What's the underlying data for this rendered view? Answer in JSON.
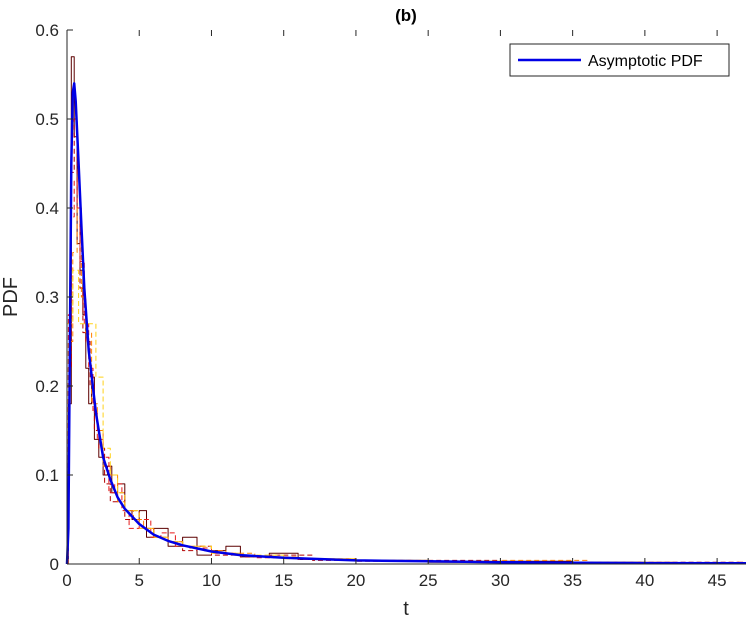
{
  "chart_data": {
    "type": "line",
    "title": "(b)",
    "xlabel": "t",
    "ylabel": "PDF",
    "xlim": [
      0,
      47
    ],
    "ylim": [
      0,
      0.6
    ],
    "xticks": [
      0,
      5,
      10,
      15,
      20,
      25,
      30,
      35,
      40,
      45
    ],
    "yticks": [
      0,
      0.1,
      0.2,
      0.3,
      0.4,
      0.5,
      0.6
    ],
    "ytick_labels": [
      "0",
      "0.1",
      "0.2",
      "0.3",
      "0.4",
      "0.5",
      "0.6"
    ],
    "grid": false,
    "legend": {
      "position": "top-right",
      "entries": [
        "Asymptotic PDF"
      ]
    },
    "series": [
      {
        "name": "Asymptotic PDF",
        "color": "#0000e6",
        "style": "solid",
        "x": [
          0,
          0.1,
          0.2,
          0.3,
          0.4,
          0.5,
          0.6,
          0.8,
          1.0,
          1.2,
          1.5,
          2.0,
          2.5,
          3.0,
          3.5,
          4.0,
          5.0,
          6.0,
          7.0,
          8.0,
          10.0,
          12.0,
          15.0,
          20.0,
          25.0,
          30.0,
          35.0,
          40.0,
          47.0
        ],
        "y": [
          0,
          0.04,
          0.25,
          0.45,
          0.53,
          0.54,
          0.52,
          0.45,
          0.38,
          0.31,
          0.24,
          0.17,
          0.12,
          0.095,
          0.075,
          0.062,
          0.045,
          0.033,
          0.026,
          0.021,
          0.014,
          0.01,
          0.007,
          0.004,
          0.003,
          0.002,
          0.0015,
          0.001,
          0.0008
        ]
      },
      {
        "color": "#5c0000",
        "style": "solid",
        "x": [
          0.1,
          0.3,
          0.5,
          0.7,
          0.9,
          1.1,
          1.3,
          1.5,
          1.7,
          1.9,
          2.2,
          2.5,
          2.8,
          3.1,
          3.5,
          4.0,
          4.5,
          5.0,
          5.5,
          6.0,
          7.0,
          8.0,
          9.0,
          10.0,
          11.0,
          12.0,
          14.0,
          16.0,
          20.0,
          25.0,
          30.0,
          35.0,
          40.0,
          46.5
        ],
        "y": [
          0.18,
          0.57,
          0.48,
          0.36,
          0.33,
          0.28,
          0.22,
          0.18,
          0.21,
          0.14,
          0.12,
          0.1,
          0.11,
          0.08,
          0.09,
          0.06,
          0.05,
          0.06,
          0.03,
          0.04,
          0.02,
          0.03,
          0.01,
          0.015,
          0.02,
          0.008,
          0.012,
          0.005,
          0.004,
          0.002,
          0.003,
          0.002,
          0.001,
          0.001
        ]
      },
      {
        "color": "#b30000",
        "style": "dashed",
        "x": [
          0.1,
          0.3,
          0.5,
          0.7,
          0.9,
          1.1,
          1.3,
          1.6,
          1.9,
          2.2,
          2.6,
          3.0,
          3.5,
          4.0,
          4.5,
          5.0,
          6.0,
          7.0,
          8.0,
          9.0,
          10.0,
          12.0,
          14.0,
          17.0,
          20.0,
          25.0,
          30.0,
          35.0,
          40.0,
          46.5
        ],
        "y": [
          0.22,
          0.44,
          0.5,
          0.42,
          0.31,
          0.26,
          0.25,
          0.2,
          0.15,
          0.13,
          0.09,
          0.07,
          0.08,
          0.05,
          0.06,
          0.04,
          0.03,
          0.025,
          0.015,
          0.02,
          0.01,
          0.008,
          0.01,
          0.004,
          0.003,
          0.004,
          0.002,
          0.001,
          0.002,
          0.001
        ]
      },
      {
        "color": "#e61a1a",
        "style": "dashed",
        "x": [
          0.1,
          0.3,
          0.5,
          0.7,
          0.9,
          1.2,
          1.5,
          1.8,
          2.1,
          2.5,
          2.9,
          3.3,
          3.8,
          4.3,
          5.0,
          5.8,
          6.5,
          7.5,
          8.5,
          10.0,
          11.5,
          13.0,
          16.0,
          19.0,
          24.0,
          29.0,
          34.0,
          40.0,
          46.5
        ],
        "y": [
          0.28,
          0.39,
          0.43,
          0.4,
          0.34,
          0.27,
          0.22,
          0.17,
          0.14,
          0.12,
          0.08,
          0.09,
          0.06,
          0.04,
          0.05,
          0.03,
          0.035,
          0.02,
          0.018,
          0.012,
          0.01,
          0.007,
          0.005,
          0.004,
          0.003,
          0.002,
          0.002,
          0.001,
          0.002
        ]
      },
      {
        "color": "#ff8000",
        "style": "dashed",
        "x": [
          0.1,
          0.4,
          0.7,
          1.0,
          1.3,
          1.7,
          2.1,
          2.5,
          3.0,
          3.5,
          4.0,
          4.6,
          5.3,
          6.0,
          7.0,
          8.0,
          9.5,
          11.0,
          13.0,
          16.0,
          20.0,
          25.0,
          30.0,
          36.0,
          42.0,
          46.5
        ],
        "y": [
          0.25,
          0.35,
          0.4,
          0.3,
          0.26,
          0.18,
          0.15,
          0.11,
          0.1,
          0.07,
          0.06,
          0.05,
          0.04,
          0.03,
          0.025,
          0.02,
          0.015,
          0.012,
          0.008,
          0.006,
          0.004,
          0.003,
          0.004,
          0.002,
          0.001,
          0.001
        ]
      },
      {
        "color": "#ffd21a",
        "style": "dashed",
        "x": [
          0.0,
          0.4,
          0.8,
          1.2,
          1.6,
          2.0,
          2.5,
          3.0,
          3.5,
          4.0,
          5.0,
          6.0,
          7.0,
          8.0,
          10.0,
          12.0,
          15.0,
          20.0,
          25.0,
          30.0,
          35.0,
          40.0,
          46.5
        ],
        "y": [
          0.27,
          0.33,
          0.27,
          0.27,
          0.27,
          0.21,
          0.13,
          0.1,
          0.08,
          0.06,
          0.04,
          0.03,
          0.025,
          0.02,
          0.012,
          0.01,
          0.006,
          0.004,
          0.003,
          0.002,
          0.002,
          0.001,
          0.001
        ]
      }
    ]
  }
}
